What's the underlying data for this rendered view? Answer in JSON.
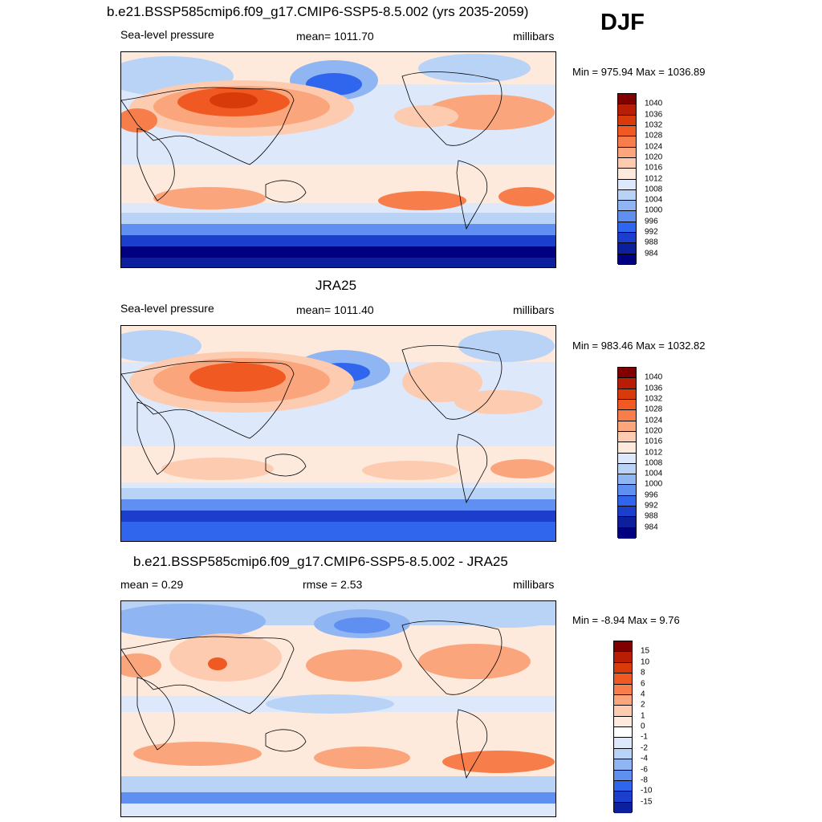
{
  "season": "DJF",
  "panels": [
    {
      "title": "b.e21.BSSP585cmip6.f09_g17.CMIP6-SSP5-8.5.002 (yrs 2035-2059)",
      "left_label": "Sea-level pressure",
      "center_label": "mean= 1011.70",
      "right_label": "millibars",
      "minmax": "Min = 975.94 Max = 1036.89",
      "colorbar_labels": [
        "1040",
        "1036",
        "1032",
        "1028",
        "1024",
        "1020",
        "1016",
        "1012",
        "1008",
        "1004",
        "1000",
        "996",
        "992",
        "988",
        "984"
      ]
    },
    {
      "title": "JRA25",
      "left_label": "Sea-level pressure",
      "center_label": "mean= 1011.40",
      "right_label": "millibars",
      "minmax": "Min = 983.46 Max = 1032.82",
      "colorbar_labels": [
        "1040",
        "1036",
        "1032",
        "1028",
        "1024",
        "1020",
        "1016",
        "1012",
        "1008",
        "1004",
        "1000",
        "996",
        "992",
        "988",
        "984"
      ]
    },
    {
      "title": "b.e21.BSSP585cmip6.f09_g17.CMIP6-SSP5-8.5.002 - JRA25",
      "left_label": "mean =   0.29",
      "center_label": "rmse =   2.53",
      "right_label": "millibars",
      "minmax": "Min =  -8.94 Max =   9.76",
      "colorbar_labels": [
        "15",
        "10",
        "8",
        "6",
        "4",
        "2",
        "1",
        "0",
        "-1",
        "-2",
        "-4",
        "-6",
        "-8",
        "-10",
        "-15"
      ]
    }
  ],
  "colors": {
    "abs_scale": [
      "#800000",
      "#b81e05",
      "#d93a0a",
      "#f05a22",
      "#f77e4a",
      "#fba57d",
      "#fdcbb0",
      "#feeadc",
      "#dde8fa",
      "#b9d3f7",
      "#8fb5f2",
      "#5f8ff0",
      "#3066ee",
      "#1b3fcc",
      "#0c1f9c",
      "#000080"
    ],
    "diff_scale": [
      "#800000",
      "#b81e05",
      "#d93a0a",
      "#f05a22",
      "#f77e4a",
      "#fba57d",
      "#fdcbb0",
      "#feeadc",
      "#ffffff",
      "#dde8fa",
      "#b9d3f7",
      "#8fb5f2",
      "#5f8ff0",
      "#3066ee",
      "#1b3fcc",
      "#0c1f9c"
    ]
  }
}
